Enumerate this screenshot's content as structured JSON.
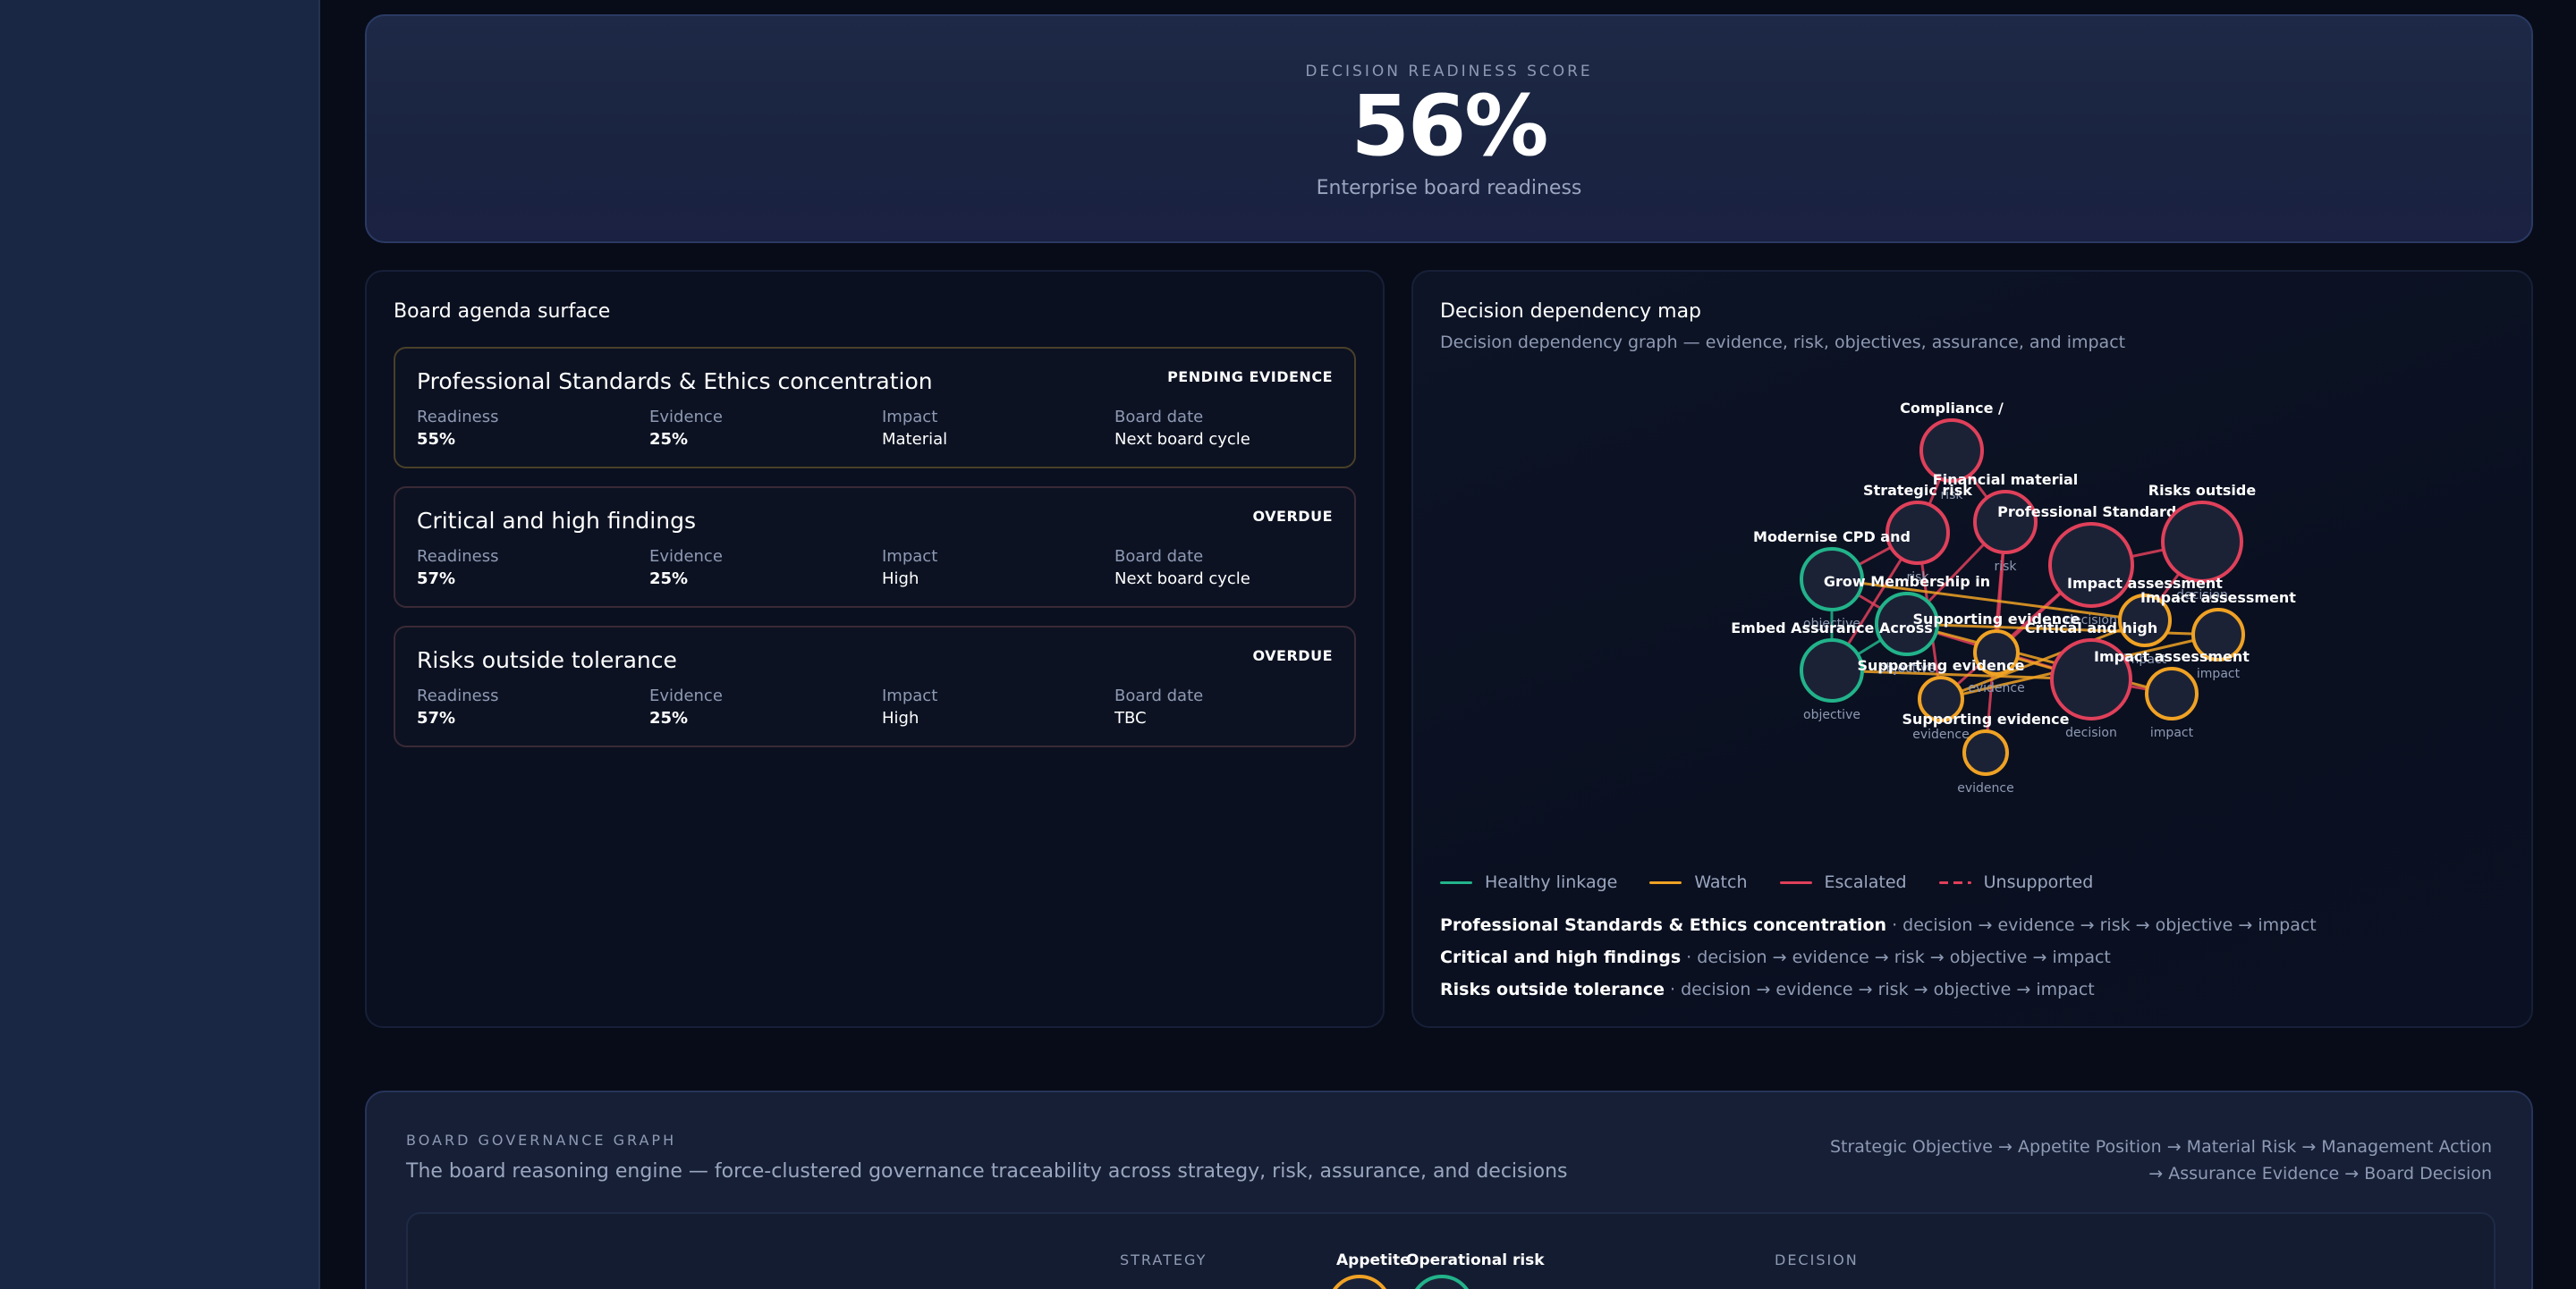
{
  "score": {
    "label": "DECISION READINESS SCORE",
    "value": "56%",
    "subtitle": "Enterprise board readiness"
  },
  "agenda": {
    "title": "Board agenda surface",
    "col_labels": [
      "Readiness",
      "Evidence",
      "Impact",
      "Board date"
    ],
    "items": [
      {
        "title": "Professional Standards & Ethics concentration",
        "badge": "PENDING EVIDENCE",
        "readiness": "55%",
        "evidence": "25%",
        "impact": "Material",
        "board_date": "Next board cycle"
      },
      {
        "title": "Critical and high findings",
        "badge": "OVERDUE",
        "readiness": "57%",
        "evidence": "25%",
        "impact": "High",
        "board_date": "Next board cycle"
      },
      {
        "title": "Risks outside tolerance",
        "badge": "OVERDUE",
        "readiness": "57%",
        "evidence": "25%",
        "impact": "High",
        "board_date": "TBC"
      }
    ]
  },
  "map": {
    "title": "Decision dependency map",
    "subtitle": "Decision dependency graph — evidence, risk, objectives, assurance, and impact",
    "colors": {
      "healthy": "#22b38a",
      "watch": "#f0a224",
      "escalated": "#e0405a",
      "unsupported": "#e0405a"
    },
    "nodes": [
      {
        "label": "Compliance /",
        "type": "risk",
        "status": "escalated"
      },
      {
        "label": "Financial material",
        "type": "risk",
        "status": "escalated"
      },
      {
        "label": "Strategic risk",
        "type": "risk",
        "status": "escalated"
      },
      {
        "label": "Professional Standards",
        "type": "decision",
        "status": "escalated"
      },
      {
        "label": "Risks outside",
        "type": "decision",
        "status": "escalated"
      },
      {
        "label": "Modernise CPD and",
        "type": "objective",
        "status": "healthy"
      },
      {
        "label": "Grow Membership in",
        "type": "objective",
        "status": "healthy"
      },
      {
        "label": "Embed Assurance Across",
        "type": "objective",
        "status": "healthy"
      },
      {
        "label": "Impact assessment",
        "type": "impact",
        "status": "watch"
      },
      {
        "label": "Impact assessment",
        "type": "impact",
        "status": "watch"
      },
      {
        "label": "Supporting evidence",
        "type": "evidence",
        "status": "watch"
      },
      {
        "label": "Critical and high",
        "type": "decision",
        "status": "escalated"
      },
      {
        "label": "Impact assessment",
        "type": "impact",
        "status": "watch"
      },
      {
        "label": "Supporting evidence",
        "type": "evidence",
        "status": "watch"
      },
      {
        "label": "Supporting evidence",
        "type": "evidence",
        "status": "watch"
      }
    ],
    "legend": [
      {
        "label": "Healthy linkage",
        "key": "healthy"
      },
      {
        "label": "Watch",
        "key": "watch"
      },
      {
        "label": "Escalated",
        "key": "escalated"
      },
      {
        "label": "Unsupported",
        "key": "unsupported"
      }
    ],
    "chains": [
      {
        "name": "Professional Standards & Ethics concentration",
        "path": " · decision → evidence → risk → objective → impact"
      },
      {
        "name": "Critical and high findings",
        "path": " · decision → evidence → risk → objective → impact"
      },
      {
        "name": "Risks outside tolerance",
        "path": " · decision → evidence → risk → objective → impact"
      }
    ]
  },
  "governance": {
    "label": "BOARD GOVERNANCE GRAPH",
    "description": "The board reasoning engine — force-clustered governance traceability across strategy, risk, assurance, and decisions",
    "path_line1": "Strategic Objective → Appetite Position → Material Risk → Management Action",
    "path_line2": "→ Assurance Evidence → Board Decision",
    "col_strategy": "STRATEGY",
    "col_decision": "DECISION",
    "node_appetite": "Appetite",
    "node_operational": "Operational risk"
  }
}
